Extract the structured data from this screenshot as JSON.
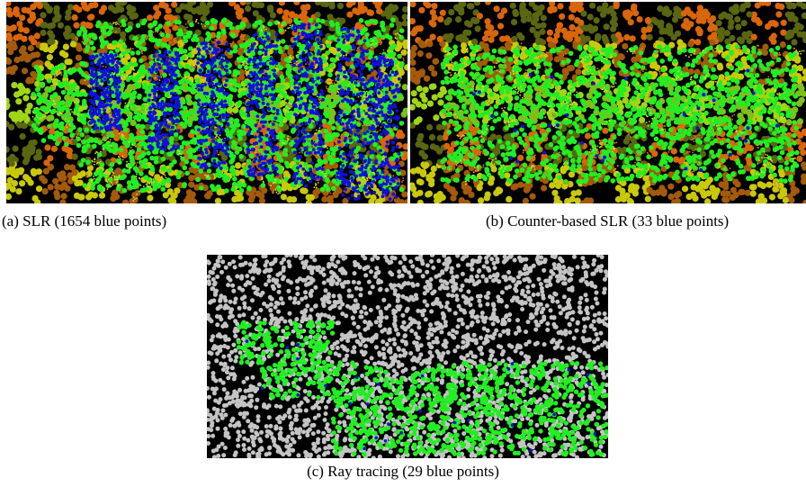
{
  "figure": {
    "panels": [
      {
        "id": "a",
        "caption": "(a) SLR (1654 blue points)"
      },
      {
        "id": "b",
        "caption": "(b) Counter-based SLR (33 blue points)"
      },
      {
        "id": "c",
        "caption": "(c) Ray tracing (29 blue points)"
      }
    ]
  },
  "colors": {
    "background": "#000000",
    "region_palette": [
      "#d9660a",
      "#7fbf1a",
      "#c9c90a",
      "#5a6610",
      "#9fd615",
      "#a35a0a"
    ],
    "green_point": "#22ee22",
    "blue_point": "#1010dd",
    "gray_point": "#c4c4c4",
    "path_orange": "#e07020",
    "path_yellow": "#d8d838"
  },
  "counts": {
    "a_blue_points": 1654,
    "b_blue_points": 33,
    "c_blue_points": 29
  }
}
